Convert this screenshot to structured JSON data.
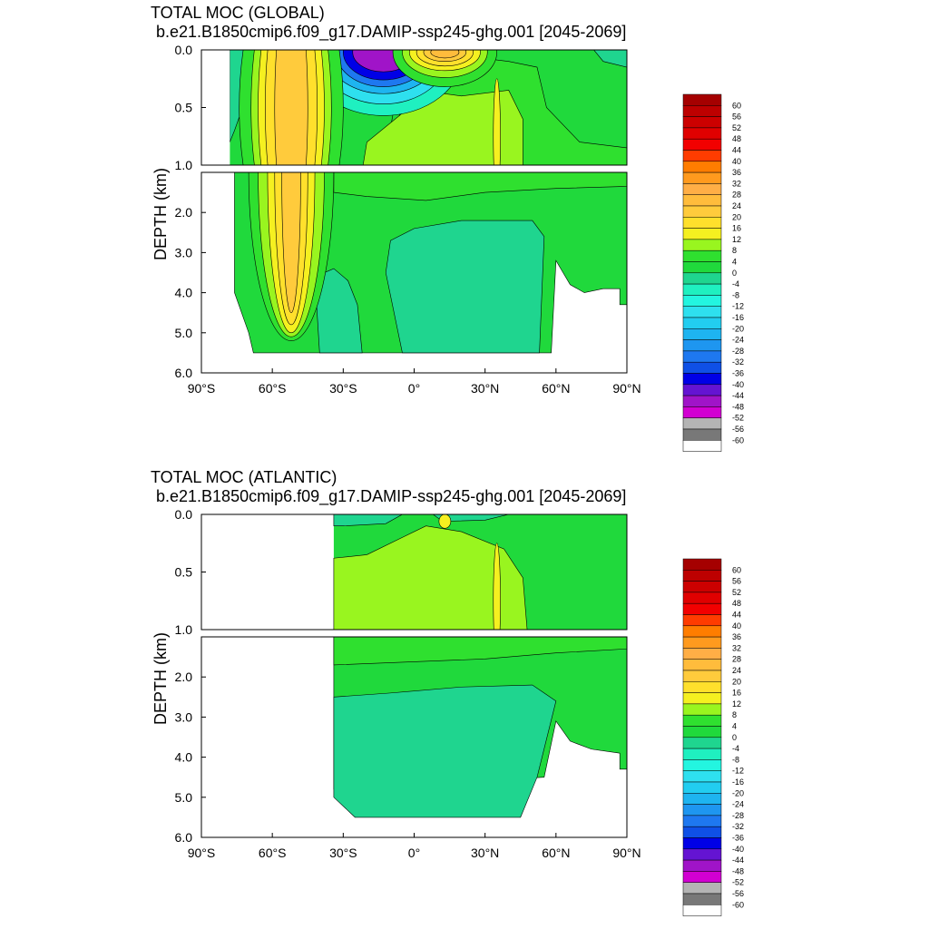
{
  "chart_data": [
    {
      "type": "heatmap",
      "title": "TOTAL MOC (GLOBAL)",
      "subtitle": "b.e21.B1850cmip6.f09_g17.DAMIP-ssp245-ghg.001 [2045-2069]",
      "ylabel": "DEPTH (km)",
      "x_ticks": [
        "90°S",
        "60°S",
        "30°S",
        "0°",
        "30°N",
        "60°N",
        "90°N"
      ],
      "upper_y_ticks": [
        "0.0",
        "0.5",
        "1.0"
      ],
      "lower_y_ticks": [
        "2.0",
        "3.0",
        "4.0",
        "5.0",
        "6.0"
      ],
      "xlim": [
        -90,
        90
      ],
      "upper_ylim": [
        0,
        1
      ],
      "lower_ylim": [
        1,
        6
      ],
      "colorbar_labels": [
        "60",
        "56",
        "52",
        "48",
        "44",
        "40",
        "36",
        "32",
        "28",
        "24",
        "20",
        "16",
        "12",
        "8",
        "4",
        "0",
        "-4",
        "-8",
        "-12",
        "-16",
        "-20",
        "-24",
        "-28",
        "-32",
        "-36",
        "-40",
        "-44",
        "-48",
        "-52",
        "-56",
        "-60"
      ],
      "features": [
        {
          "desc": "Southern Ocean positive cell",
          "lat": -52,
          "depth_km": [
            0,
            4.2
          ],
          "peak": 24
        },
        {
          "desc": "Southern tropical negative cell",
          "lat": -15,
          "depth_km": [
            0,
            0.2
          ],
          "peak": -44
        },
        {
          "desc": "Northern tropical positive cell",
          "lat": 12,
          "depth_km": [
            0,
            0.2
          ],
          "peak": 28
        },
        {
          "desc": "North Atlantic overturning",
          "lat": 35,
          "depth_km": [
            0.4,
            1.5
          ],
          "peak": 16
        },
        {
          "desc": "Abyssal negative cell",
          "lat": 10,
          "depth_km": [
            2.2,
            5.5
          ],
          "peak": -4
        }
      ]
    },
    {
      "type": "heatmap",
      "title": "TOTAL MOC (ATLANTIC)",
      "subtitle": "b.e21.B1850cmip6.f09_g17.DAMIP-ssp245-ghg.001 [2045-2069]",
      "ylabel": "DEPTH (km)",
      "x_ticks": [
        "90°S",
        "60°S",
        "30°S",
        "0°",
        "30°N",
        "60°N",
        "90°N"
      ],
      "upper_y_ticks": [
        "0.0",
        "0.5",
        "1.0"
      ],
      "lower_y_ticks": [
        "2.0",
        "3.0",
        "4.0",
        "5.0",
        "6.0"
      ],
      "xlim": [
        -90,
        90
      ],
      "upper_ylim": [
        0,
        1
      ],
      "lower_ylim": [
        1,
        6
      ],
      "colorbar_labels": [
        "60",
        "56",
        "52",
        "48",
        "44",
        "40",
        "36",
        "32",
        "28",
        "24",
        "20",
        "16",
        "12",
        "8",
        "4",
        "0",
        "-4",
        "-8",
        "-12",
        "-16",
        "-20",
        "-24",
        "-28",
        "-32",
        "-36",
        "-40",
        "-44",
        "-48",
        "-52",
        "-56",
        "-60"
      ],
      "features": [
        {
          "desc": "Atlantic overturning cell",
          "lat": 10,
          "depth_km": [
            0.1,
            1.5
          ],
          "peak": 16
        },
        {
          "desc": "Abyssal negative cell",
          "lat": 10,
          "depth_km": [
            2.2,
            5.5
          ],
          "peak": -4
        }
      ]
    }
  ],
  "colorbar_colors": [
    "#a50000",
    "#bd0000",
    "#cc0000",
    "#e00000",
    "#f20000",
    "#ff3c00",
    "#ff7d00",
    "#ff9a1e",
    "#ffae46",
    "#ffbc3c",
    "#ffcb3c",
    "#ffe02c",
    "#f5f020",
    "#99f51f",
    "#2fe02f",
    "#20d93c",
    "#1fd58f",
    "#1ff0c0",
    "#23f5e0",
    "#2ee0ef",
    "#22cdf0",
    "#1eb4f0",
    "#1e96f0",
    "#1e78f0",
    "#0f50e6",
    "#0000e6",
    "#6414d2",
    "#a014c8",
    "#d200d2",
    "#b4b4b4",
    "#787878",
    "#ffffff"
  ]
}
